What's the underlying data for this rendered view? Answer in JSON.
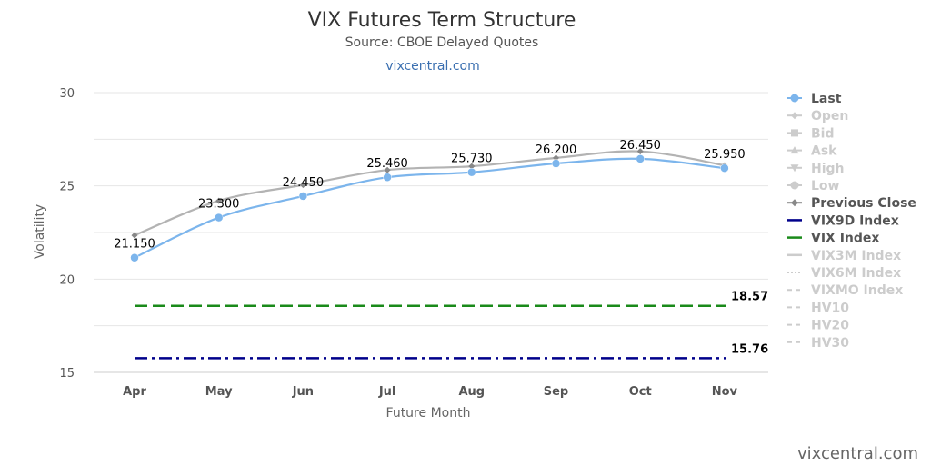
{
  "chart_data": {
    "type": "line",
    "title": "VIX Futures Term Structure",
    "subtitle": "Source: CBOE Delayed Quotes",
    "site_link": "vixcentral.com",
    "watermark": "vixcentral.com",
    "xlabel": "Future Month",
    "ylabel": "Volatility",
    "categories": [
      "Apr",
      "May",
      "Jun",
      "Jul",
      "Aug",
      "Sep",
      "Oct",
      "Nov"
    ],
    "ylim": [
      15,
      30
    ],
    "yticks": [
      "15",
      "20",
      "25",
      "30"
    ],
    "grid": true,
    "legend_position": "right",
    "series": [
      {
        "name": "Last",
        "color": "#7cb5ec",
        "values": [
          21.15,
          23.3,
          24.45,
          25.46,
          25.73,
          26.2,
          26.45,
          25.95
        ],
        "data_labels": [
          "21.150",
          "23.300",
          "24.450",
          "25.460",
          "25.730",
          "26.200",
          "26.450",
          "25.950"
        ]
      },
      {
        "name": "Previous Close",
        "color": "#b3b3b3",
        "values": [
          22.35,
          24.2,
          25.05,
          25.85,
          26.05,
          26.5,
          26.85,
          26.1
        ]
      }
    ],
    "reference_lines": [
      {
        "name": "VIX Index",
        "value": 18.57,
        "label": "18.57",
        "color": "#1a8a1a",
        "style": "dash"
      },
      {
        "name": "VIX9D Index",
        "value": 15.76,
        "label": "15.76",
        "color": "#00008b",
        "style": "dashdot"
      }
    ],
    "legend": [
      {
        "name": "Last",
        "color": "#555555",
        "marker_color": "#7cb5ec",
        "marker": "circle",
        "active": true
      },
      {
        "name": "Open",
        "color": "#cccccc",
        "marker_color": "#cccccc",
        "marker": "diamond",
        "active": false
      },
      {
        "name": "Bid",
        "color": "#cccccc",
        "marker_color": "#cccccc",
        "marker": "square",
        "active": false
      },
      {
        "name": "Ask",
        "color": "#cccccc",
        "marker_color": "#cccccc",
        "marker": "triangle",
        "active": false
      },
      {
        "name": "High",
        "color": "#cccccc",
        "marker_color": "#cccccc",
        "marker": "triangle-down",
        "active": false
      },
      {
        "name": "Low",
        "color": "#cccccc",
        "marker_color": "#cccccc",
        "marker": "circle",
        "active": false
      },
      {
        "name": "Previous Close",
        "color": "#555555",
        "marker_color": "#888888",
        "marker": "diamond",
        "active": true
      },
      {
        "name": "VIX9D Index",
        "color": "#555555",
        "marker_color": "#00008b",
        "marker": "line",
        "active": true
      },
      {
        "name": "VIX Index",
        "color": "#555555",
        "marker_color": "#1a8a1a",
        "marker": "line",
        "active": true
      },
      {
        "name": "VIX3M Index",
        "color": "#cccccc",
        "marker_color": "#cccccc",
        "marker": "line",
        "active": false
      },
      {
        "name": "VIX6M Index",
        "color": "#cccccc",
        "marker_color": "#cccccc",
        "marker": "dotline",
        "active": false
      },
      {
        "name": "VIXMO Index",
        "color": "#cccccc",
        "marker_color": "#cccccc",
        "marker": "dashline",
        "active": false
      },
      {
        "name": "HV10",
        "color": "#cccccc",
        "marker_color": "#cccccc",
        "marker": "dashline",
        "active": false
      },
      {
        "name": "HV20",
        "color": "#cccccc",
        "marker_color": "#cccccc",
        "marker": "dashline",
        "active": false
      },
      {
        "name": "HV30",
        "color": "#cccccc",
        "marker_color": "#cccccc",
        "marker": "dashline",
        "active": false
      }
    ]
  }
}
